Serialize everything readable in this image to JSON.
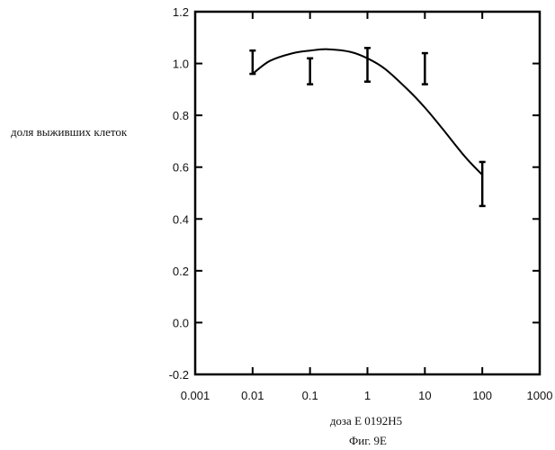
{
  "chart_data": {
    "type": "line",
    "xlabel": "доза E 0192H5",
    "ylabel": "доля выживших клеток",
    "caption": "Фиг. 9E",
    "x_scale": "log",
    "xlim": [
      0.001,
      1000
    ],
    "ylim": [
      -0.2,
      1.2
    ],
    "grid": false,
    "x_ticks": [
      {
        "value": 0.001,
        "label": "0.001"
      },
      {
        "value": 0.01,
        "label": "0.01"
      },
      {
        "value": 0.1,
        "label": "0.1"
      },
      {
        "value": 1,
        "label": "1"
      },
      {
        "value": 10,
        "label": "10"
      },
      {
        "value": 100,
        "label": "100"
      },
      {
        "value": 1000,
        "label": "1000"
      }
    ],
    "y_ticks": [
      {
        "value": 1.2,
        "label": "1.2"
      },
      {
        "value": 1.0,
        "label": "1.0"
      },
      {
        "value": 0.8,
        "label": "0.8"
      },
      {
        "value": 0.6,
        "label": "0.6"
      },
      {
        "value": 0.4,
        "label": "0.4"
      },
      {
        "value": 0.2,
        "label": "0.2"
      },
      {
        "value": 0.0,
        "label": "0.0"
      },
      {
        "value": -0.2,
        "label": "-0.2"
      }
    ],
    "error_bars": [
      {
        "x": 0.01,
        "low": 0.96,
        "high": 1.05
      },
      {
        "x": 0.1,
        "low": 0.92,
        "high": 1.02
      },
      {
        "x": 1,
        "low": 0.93,
        "high": 1.06
      },
      {
        "x": 10,
        "low": 0.92,
        "high": 1.04
      },
      {
        "x": 100,
        "low": 0.45,
        "high": 0.62
      }
    ],
    "fit_curve": {
      "x": [
        0.01,
        0.02,
        0.05,
        0.1,
        0.2,
        0.5,
        1,
        2,
        5,
        10,
        20,
        50,
        100
      ],
      "y": [
        0.96,
        1.01,
        1.04,
        1.05,
        1.055,
        1.045,
        1.02,
        0.98,
        0.9,
        0.83,
        0.75,
        0.64,
        0.57
      ]
    }
  }
}
